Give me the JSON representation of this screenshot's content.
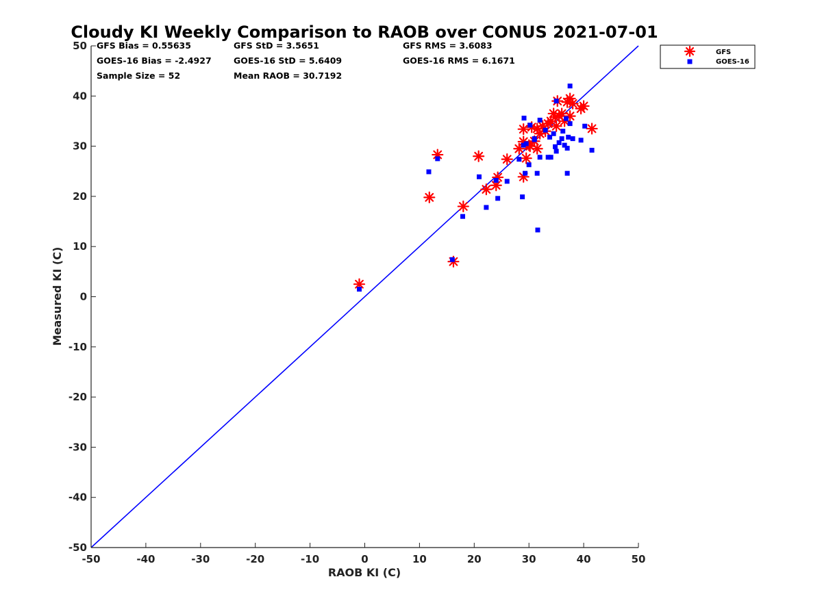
{
  "chart_data": {
    "type": "scatter",
    "title": "Cloudy KI Weekly Comparison to RAOB over CONUS 2021-07-01",
    "xlabel": "RAOB KI (C)",
    "ylabel": "Measured KI (C)",
    "xlim": [
      -50,
      50
    ],
    "ylim": [
      -50,
      50
    ],
    "xticks": [
      "-50",
      "-40",
      "-30",
      "-20",
      "-10",
      "0",
      "10",
      "20",
      "30",
      "40",
      "50"
    ],
    "yticks": [
      "50",
      "40",
      "30",
      "20",
      "10",
      "0",
      "-10",
      "-20",
      "-30",
      "-40",
      "-50"
    ],
    "grid": false,
    "legend_position": "outside-top-right",
    "reference_line": {
      "name": "1:1 line",
      "color": "#0000ff",
      "x": [
        -50,
        50
      ],
      "y": [
        -50,
        50
      ]
    },
    "stats": [
      [
        "GFS Bias = 0.55635",
        "GFS StD = 3.5651",
        "GFS RMS = 3.6083"
      ],
      [
        "GOES-16 Bias = -2.4927",
        "GOES-16 StD = 5.6409",
        "GOES-16 RMS = 6.1671"
      ],
      [
        "Sample Size = 52",
        "Mean RAOB = 30.7192",
        ""
      ]
    ],
    "series": [
      {
        "name": "GFS",
        "marker": "asterisk",
        "color": "#ff0000",
        "points": [
          [
            -1.0,
            2.5
          ],
          [
            11.8,
            19.8
          ],
          [
            13.3,
            28.3
          ],
          [
            16.2,
            7.0
          ],
          [
            18.0,
            18.0
          ],
          [
            20.8,
            28.0
          ],
          [
            22.2,
            21.4
          ],
          [
            24.0,
            22.2
          ],
          [
            24.3,
            23.8
          ],
          [
            26.0,
            27.4
          ],
          [
            28.2,
            29.5
          ],
          [
            29.0,
            23.9
          ],
          [
            29.0,
            33.4
          ],
          [
            29.5,
            27.6
          ],
          [
            29.0,
            30.9
          ],
          [
            30.0,
            30.2
          ],
          [
            30.5,
            33.8
          ],
          [
            31.0,
            31.0
          ],
          [
            31.5,
            29.5
          ],
          [
            31.5,
            33.5
          ],
          [
            32.0,
            32.5
          ],
          [
            32.5,
            34.0
          ],
          [
            33.0,
            33.0
          ],
          [
            33.5,
            34.5
          ],
          [
            34.0,
            35.0
          ],
          [
            34.5,
            36.5
          ],
          [
            35.0,
            34.0
          ],
          [
            35.5,
            36.0
          ],
          [
            35.2,
            39.0
          ],
          [
            36.0,
            36.5
          ],
          [
            36.5,
            35.0
          ],
          [
            37.0,
            38.8
          ],
          [
            37.5,
            39.5
          ],
          [
            37.5,
            36.0
          ],
          [
            38.0,
            38.5
          ],
          [
            39.5,
            37.5
          ],
          [
            40.0,
            38.0
          ],
          [
            41.5,
            33.5
          ],
          [
            30.2,
            30.0
          ],
          [
            34.8,
            35.8
          ]
        ]
      },
      {
        "name": "GOES-16",
        "marker": "square",
        "color": "#0000ff",
        "points": [
          [
            -1.0,
            1.5
          ],
          [
            11.7,
            24.9
          ],
          [
            13.3,
            27.5
          ],
          [
            16.0,
            7.4
          ],
          [
            17.9,
            16.0
          ],
          [
            20.9,
            23.9
          ],
          [
            22.2,
            17.8
          ],
          [
            24.0,
            23.2
          ],
          [
            24.3,
            19.6
          ],
          [
            26.0,
            23.0
          ],
          [
            28.2,
            27.4
          ],
          [
            28.8,
            19.9
          ],
          [
            29.1,
            35.6
          ],
          [
            29.3,
            24.6
          ],
          [
            29.0,
            30.2
          ],
          [
            29.5,
            30.5
          ],
          [
            30.0,
            26.3
          ],
          [
            30.2,
            34.2
          ],
          [
            31.0,
            31.5
          ],
          [
            31.5,
            24.6
          ],
          [
            31.6,
            13.3
          ],
          [
            32.0,
            27.8
          ],
          [
            32.0,
            35.2
          ],
          [
            33.5,
            27.8
          ],
          [
            33.8,
            31.8
          ],
          [
            34.0,
            27.8
          ],
          [
            34.5,
            32.5
          ],
          [
            34.8,
            29.9
          ],
          [
            35.0,
            29.0
          ],
          [
            35.0,
            39.0
          ],
          [
            35.5,
            30.7
          ],
          [
            36.0,
            31.5
          ],
          [
            36.2,
            33.0
          ],
          [
            36.5,
            30.2
          ],
          [
            36.8,
            35.5
          ],
          [
            37.0,
            29.6
          ],
          [
            37.0,
            24.6
          ],
          [
            37.2,
            31.8
          ],
          [
            37.5,
            34.5
          ],
          [
            37.5,
            42.0
          ],
          [
            38.0,
            31.5
          ],
          [
            39.5,
            31.2
          ],
          [
            40.2,
            34.0
          ],
          [
            41.5,
            29.2
          ],
          [
            31.0,
            31.3
          ],
          [
            33.0,
            33.2
          ]
        ]
      }
    ]
  }
}
